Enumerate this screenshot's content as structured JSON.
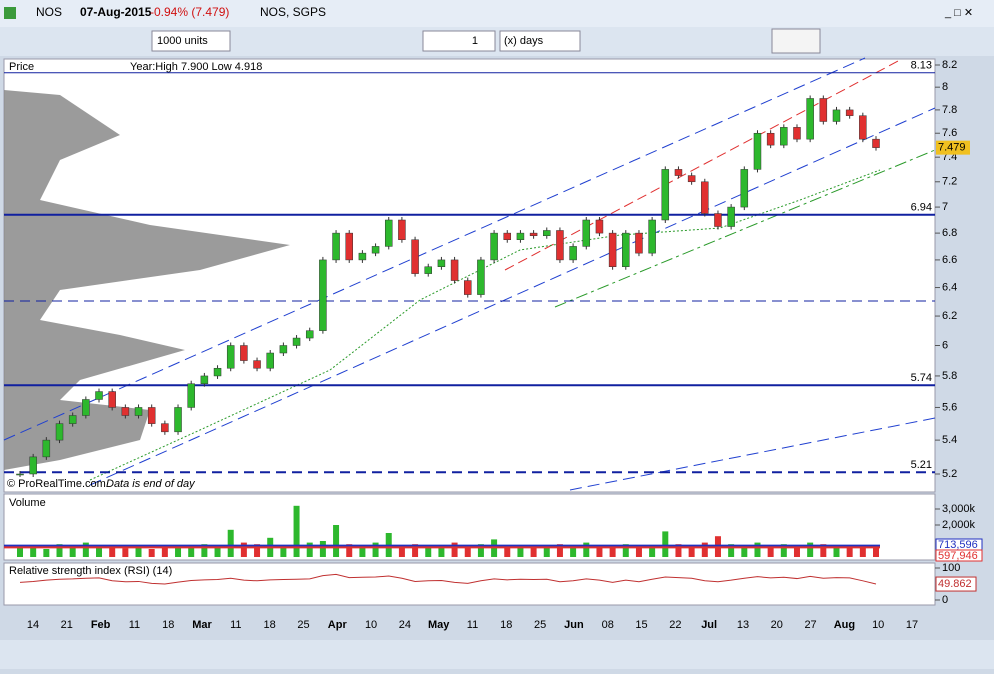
{
  "header": {
    "symbol": "NOS",
    "date": "07-Aug-2015",
    "change": "-0.94% (7.479)",
    "name": "NOS, SGPS"
  },
  "toolbar": {
    "units": "1000 units",
    "count": "1",
    "period": "(x) days"
  },
  "price": {
    "title": "Price",
    "info": "Year:High 7.900 Low 4.918",
    "credit": "© ProRealTime.com",
    "note": "Data is end of day",
    "log_scale": true,
    "ylim": [
      5.2,
      8.2
    ],
    "yticks": [
      8.2,
      8,
      7.8,
      7.6,
      7.4,
      7.2,
      7,
      6.8,
      6.6,
      6.4,
      6.2,
      6,
      5.8,
      5.6,
      5.4,
      5.2
    ],
    "levels": [
      8.13,
      6.94,
      5.74,
      5.21
    ],
    "last": 7.479,
    "up_color": "#2db82d",
    "down_color": "#e03030",
    "values": [
      5.2,
      5.3,
      5.4,
      5.5,
      5.55,
      5.65,
      5.7,
      5.6,
      5.55,
      5.6,
      5.5,
      5.45,
      5.6,
      5.75,
      5.8,
      5.85,
      6.0,
      5.9,
      5.85,
      5.95,
      6.0,
      6.05,
      6.1,
      6.6,
      6.8,
      6.6,
      6.65,
      6.7,
      6.9,
      6.75,
      6.5,
      6.55,
      6.6,
      6.45,
      6.35,
      6.6,
      6.8,
      6.75,
      6.8,
      6.78,
      6.82,
      6.6,
      6.7,
      6.9,
      6.8,
      6.55,
      6.8,
      6.65,
      6.9,
      7.3,
      7.25,
      7.2,
      6.95,
      6.85,
      7.0,
      7.3,
      7.6,
      7.5,
      7.65,
      7.55,
      7.9,
      7.7,
      7.8,
      7.75,
      7.55,
      7.479
    ]
  },
  "volume": {
    "title": "Volume",
    "ylim": [
      0,
      3000000
    ],
    "yticks": [
      {
        "value": 3000000,
        "label": "3,000k"
      },
      {
        "value": 2000000,
        "label": "2,000k"
      }
    ],
    "averages": [
      {
        "value": 713596,
        "label": "713,596",
        "color": "#2030c0"
      },
      {
        "value": 597946,
        "label": "597,946",
        "color": "#e03030"
      }
    ],
    "values": [
      600000,
      700000,
      500000,
      800000,
      650000,
      900000,
      700000,
      600000,
      550000,
      650000,
      500000,
      700000,
      600000,
      750000,
      800000,
      700000,
      1700000,
      900000,
      800000,
      1200000,
      600000,
      3200000,
      900000,
      1000000,
      2000000,
      800000,
      700000,
      900000,
      1500000,
      700000,
      800000,
      600000,
      650000,
      900000,
      700000,
      800000,
      1100000,
      700000,
      600000,
      650000,
      700000,
      800000,
      600000,
      900000,
      700000,
      650000,
      800000,
      700000,
      750000,
      1600000,
      800000,
      700000,
      900000,
      1300000,
      800000,
      700000,
      900000,
      750000,
      800000,
      700000,
      900000,
      800000,
      700000,
      650000,
      750000,
      600000
    ]
  },
  "rsi": {
    "title": "Relative strength index (RSI) (14)",
    "ylim": [
      0,
      100
    ],
    "yticks": [
      100,
      0
    ],
    "last": 49.862,
    "color": "#c03030",
    "values": [
      55,
      58,
      62,
      65,
      66,
      68,
      69,
      60,
      57,
      58,
      52,
      50,
      56,
      61,
      63,
      64,
      68,
      62,
      60,
      63,
      64,
      65,
      66,
      76,
      80,
      70,
      71,
      72,
      75,
      68,
      58,
      60,
      61,
      55,
      52,
      60,
      66,
      63,
      65,
      64,
      65,
      57,
      60,
      66,
      62,
      55,
      62,
      57,
      65,
      72,
      70,
      68,
      60,
      57,
      62,
      68,
      73,
      69,
      71,
      67,
      74,
      68,
      70,
      69,
      60,
      49.862
    ]
  },
  "xaxis": {
    "labels": [
      "14",
      "21",
      "Feb",
      "11",
      "18",
      "Mar",
      "11",
      "18",
      "25",
      "Apr",
      "10",
      "24",
      "May",
      "11",
      "18",
      "25",
      "Jun",
      "08",
      "15",
      "22",
      "Jul",
      "13",
      "20",
      "27",
      "Aug",
      "10",
      "17"
    ]
  }
}
